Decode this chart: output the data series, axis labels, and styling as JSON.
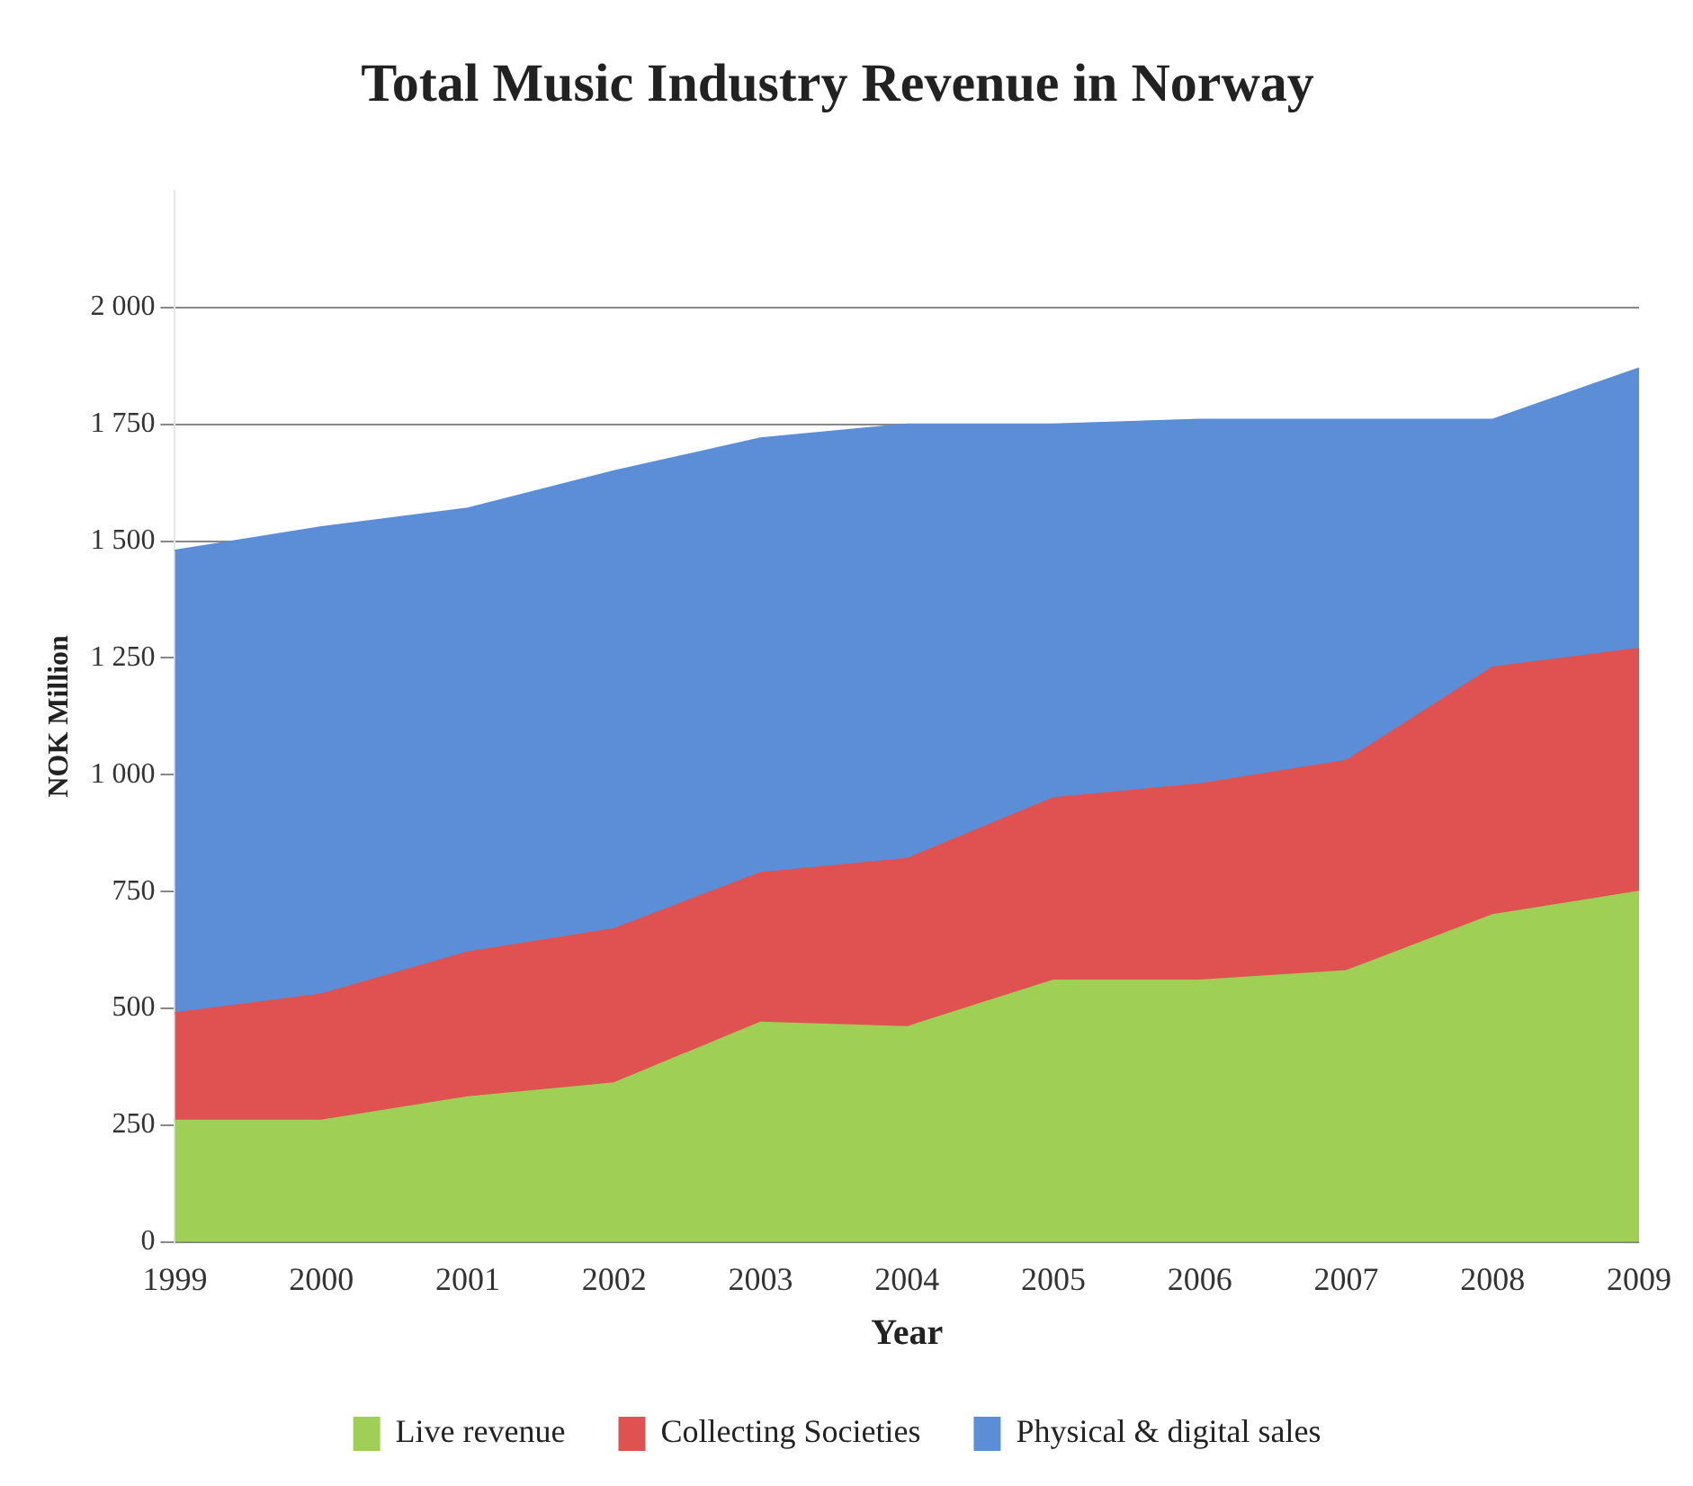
{
  "chart_data": {
    "type": "area",
    "stacked": true,
    "title": "Total Music Industry Revenue in Norway",
    "xlabel": "Year",
    "ylabel": "NOK Million",
    "categories": [
      "1999",
      "2000",
      "2001",
      "2002",
      "2003",
      "2004",
      "2005",
      "2006",
      "2007",
      "2008",
      "2009"
    ],
    "series": [
      {
        "name": "Live revenue",
        "color": "#9fcf55",
        "values": [
          260,
          260,
          310,
          340,
          470,
          460,
          560,
          560,
          580,
          700,
          750
        ]
      },
      {
        "name": "Collecting Societies",
        "color": "#e05252",
        "values": [
          230,
          270,
          310,
          330,
          320,
          360,
          390,
          420,
          450,
          530,
          520
        ]
      },
      {
        "name": "Physical & digital sales",
        "color": "#5b8ed6",
        "values": [
          990,
          1000,
          950,
          980,
          930,
          930,
          800,
          780,
          730,
          530,
          600
        ]
      }
    ],
    "ylim": [
      0,
      2250
    ],
    "yticks": [
      {
        "value": 0,
        "label": "0"
      },
      {
        "value": 250,
        "label": "250"
      },
      {
        "value": 500,
        "label": "500"
      },
      {
        "value": 750,
        "label": "750"
      },
      {
        "value": 1000,
        "label": "1 000"
      },
      {
        "value": 1250,
        "label": "1 250"
      },
      {
        "value": 1500,
        "label": "1 500"
      },
      {
        "value": 1750,
        "label": "1 750"
      },
      {
        "value": 2000,
        "label": "2 000"
      }
    ],
    "grid": "y",
    "legend": "bottom"
  }
}
